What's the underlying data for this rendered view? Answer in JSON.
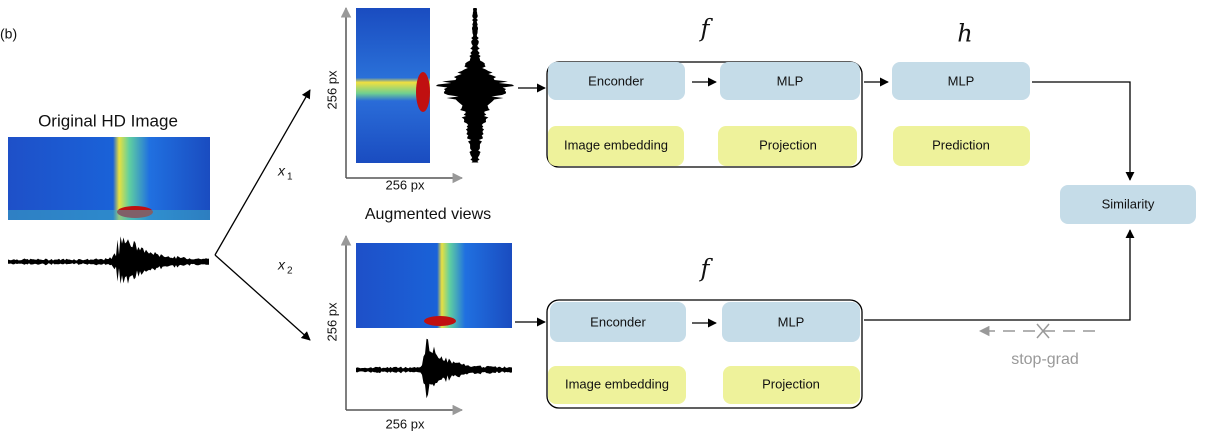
{
  "panel_label": "(b)",
  "original": {
    "title": "Original HD Image"
  },
  "augmented_caption": "Augmented views",
  "branches": [
    {
      "edge_label": {
        "var": "x",
        "sub": "1"
      },
      "view": {
        "y_axis": "256 px",
        "x_axis": "256 px"
      },
      "encoder_group": {
        "symbol": "f",
        "blocks": [
          "Enconder",
          "MLP"
        ],
        "outputs": [
          "Image embedding",
          "Projection"
        ]
      },
      "predictor": {
        "symbol": "h",
        "block": "MLP",
        "output": "Prediction"
      }
    },
    {
      "edge_label": {
        "var": "x",
        "sub": "2"
      },
      "view": {
        "y_axis": "256 px",
        "x_axis": "256 px"
      },
      "encoder_group": {
        "symbol": "f",
        "blocks": [
          "Enconder",
          "MLP"
        ],
        "outputs": [
          "Image embedding",
          "Projection"
        ]
      }
    }
  ],
  "similarity": "Similarity",
  "stop_grad": "stop-grad"
}
